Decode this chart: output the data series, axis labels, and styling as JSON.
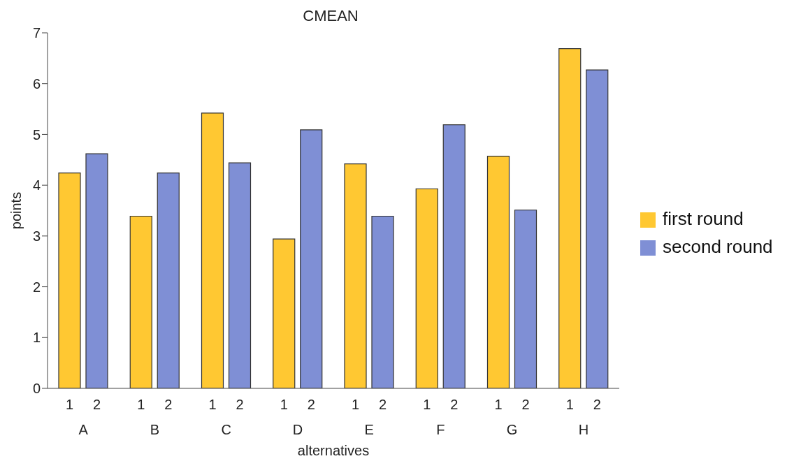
{
  "chart_data": {
    "type": "bar",
    "title": "CMEAN",
    "xlabel": "alternatives",
    "ylabel": "points",
    "categories": [
      "A",
      "B",
      "C",
      "D",
      "E",
      "F",
      "G",
      "H"
    ],
    "series": [
      {
        "name": "first round",
        "color": "#ffc832",
        "values": [
          4.24,
          3.39,
          5.42,
          2.94,
          4.42,
          3.93,
          4.57,
          6.69
        ]
      },
      {
        "name": "second round",
        "color": "#7f8fd5",
        "values": [
          4.62,
          4.24,
          4.44,
          5.09,
          3.39,
          5.19,
          3.51,
          6.27
        ]
      }
    ],
    "annotations": [
      "1",
      "2",
      "1",
      "2",
      "1",
      "2",
      "1",
      "2",
      "1",
      "2",
      "1",
      "2",
      "1",
      "2",
      "1",
      "2"
    ],
    "ylim": [
      0,
      7
    ],
    "yticks": [
      0,
      1,
      2,
      3,
      4,
      5,
      6,
      7
    ],
    "grid": false,
    "legend": "right"
  }
}
